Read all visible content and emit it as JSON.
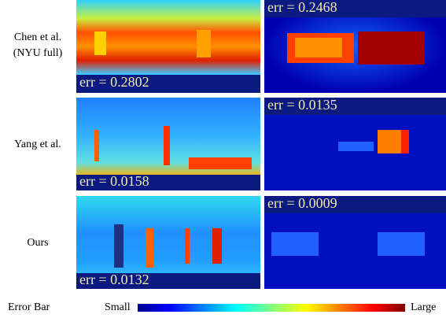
{
  "rows": [
    {
      "label": [
        "Chen et al.",
        "(NYU full)"
      ],
      "panels": [
        {
          "err": "err = 0.2802"
        },
        {
          "err": "err = 0.2468"
        }
      ]
    },
    {
      "label": [
        "Yang et al."
      ],
      "panels": [
        {
          "err": "err = 0.0158"
        },
        {
          "err": "err = 0.0135"
        }
      ]
    },
    {
      "label": [
        "Ours"
      ],
      "panels": [
        {
          "err": "err = 0.0132"
        },
        {
          "err": "err = 0.0009"
        }
      ]
    }
  ],
  "colorbar": {
    "title": "Error Bar",
    "low": "Small",
    "high": "Large"
  }
}
